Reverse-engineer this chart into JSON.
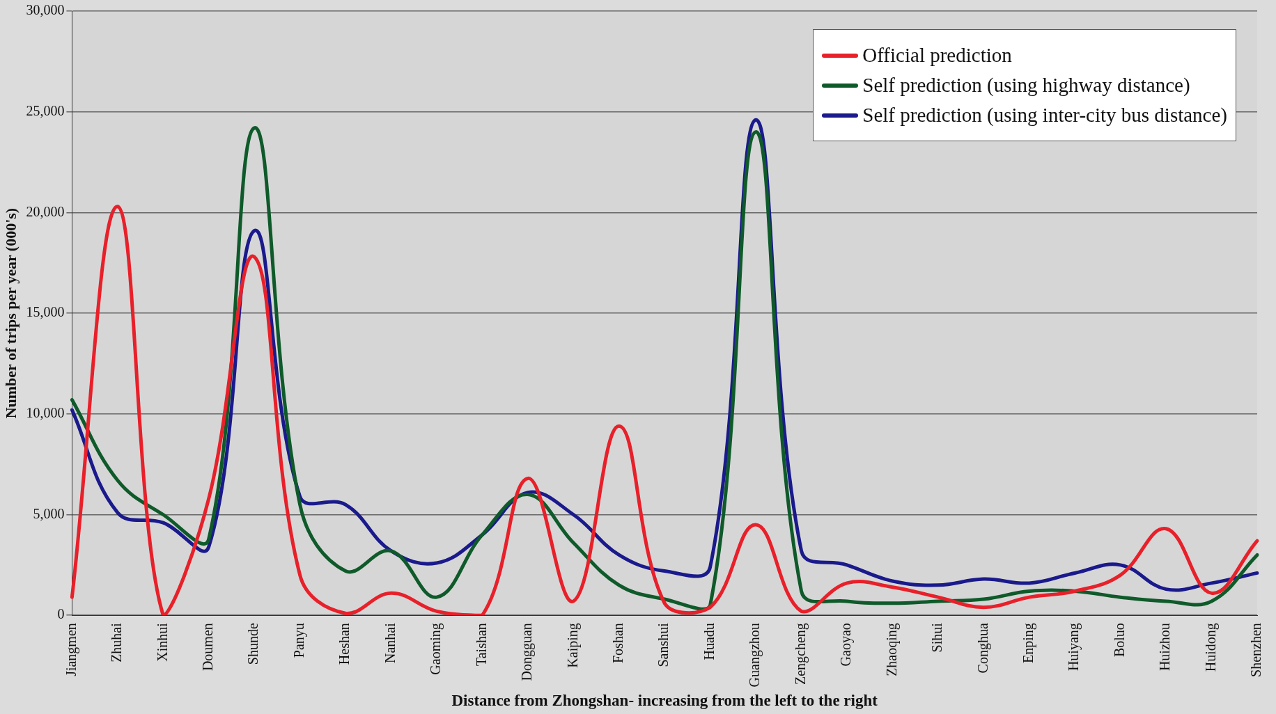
{
  "chart_data": {
    "type": "line",
    "xlabel": "Distance from Zhongshan- increasing from the left to the right",
    "ylabel": "Number of trips per year (000's)",
    "categories": [
      "Jiangmen",
      "Zhuhai",
      "Xinhui",
      "Doumen",
      "Shunde",
      "Panyu",
      "Heshan",
      "Nanhai",
      "Gaoming",
      "Taishan",
      "Dongguan",
      "Kaiping",
      "Foshan",
      "Sanshui",
      "Huadu",
      "Guangzhou",
      "Zengcheng",
      "Gaoyao",
      "Zhaoqing",
      "Sihui",
      "Conghua",
      "Enping",
      "Huiyang",
      "Boluo",
      "Huizhou",
      "Huidong",
      "Shenzhen"
    ],
    "series": [
      {
        "name": "Official prediction",
        "color": "#e8202a",
        "values": [
          900,
          20300,
          0,
          5800,
          17800,
          2000,
          100,
          1100,
          200,
          0,
          6800,
          700,
          9400,
          600,
          400,
          4500,
          200,
          1600,
          1400,
          900,
          400,
          900,
          1200,
          2000,
          4300,
          1100,
          3700
        ]
      },
      {
        "name": "Self prediction (using highway distance)",
        "color": "#0f5a2a",
        "values": [
          10700,
          6700,
          5000,
          3800,
          24200,
          5500,
          2200,
          3200,
          900,
          4000,
          6000,
          3600,
          1500,
          800,
          500,
          24000,
          1200,
          700,
          600,
          700,
          800,
          1200,
          1200,
          900,
          700,
          700,
          3000
        ]
      },
      {
        "name": "Self prediction (using inter-city bus distance)",
        "color": "#1a1a8c",
        "values": [
          10200,
          5100,
          4600,
          3400,
          19100,
          5900,
          5500,
          3200,
          2600,
          4000,
          6100,
          5000,
          3000,
          2200,
          2400,
          24600,
          3200,
          2500,
          1700,
          1500,
          1800,
          1600,
          2100,
          2500,
          1300,
          1600,
          2100
        ]
      }
    ],
    "ylim": [
      0,
      30000
    ],
    "yticks": [
      0,
      {
        "value": 5000,
        "label": "5,000"
      },
      {
        "value": 10000,
        "label": "10,000"
      },
      {
        "value": 15000,
        "label": "15,000"
      },
      {
        "value": 20000,
        "label": "20,000"
      },
      {
        "value": 25000,
        "label": "25,000"
      },
      {
        "value": 30000,
        "label": "30,000"
      }
    ],
    "grid": "y",
    "legend": "top right",
    "marker": "none",
    "line_style": "solid"
  }
}
